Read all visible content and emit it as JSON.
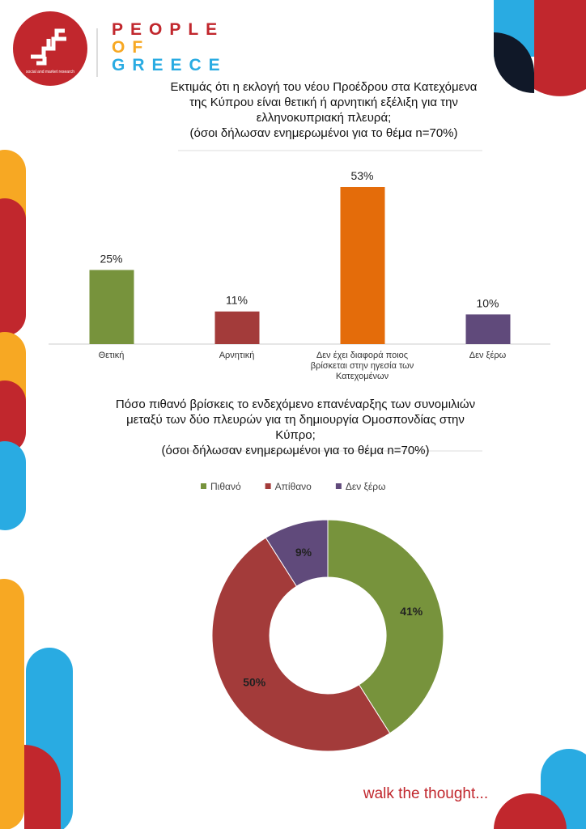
{
  "header": {
    "brand_lines": [
      "PEOPLE",
      "OF",
      "GREECE"
    ],
    "tagline": "social and market research"
  },
  "footer": "walk the thought...",
  "chart_data": [
    {
      "type": "bar",
      "title": "Εκτιμάς ότι η εκλογή του νέου Προέδρου στα Κατεχόμενα της Κύπρου είναι θετική ή αρνητική εξέλιξη για την ελληνοκυπριακή πλευρά;",
      "subtitle": "(όσοι δήλωσαν ενημερωμένοι για το θέμα n=70%)",
      "categories": [
        "Θετική",
        "Αρνητική",
        "Δεν έχει διαφορά ποιος βρίσκεται στην ηγεσία των Κατεχομένων",
        "Δεν ξέρω"
      ],
      "values": [
        25,
        11,
        53,
        10
      ],
      "value_labels": [
        "25%",
        "11%",
        "53%",
        "10%"
      ],
      "colors": [
        "#77933c",
        "#a33b3a",
        "#e46c0a",
        "#604a7b"
      ]
    },
    {
      "type": "pie",
      "title": "Πόσο πιθανό βρίσκεις το ενδεχόμενο επανέναρξης των συνομιλιών μεταξύ των δύο πλευρών για τη δημιουργία Ομοσπονδίας στην Κύπρο;",
      "subtitle": "(όσοι δήλωσαν ενημερωμένοι για το θέμα n=70%)",
      "categories": [
        "Πιθανό",
        "Απίθανο",
        "Δεν ξέρω"
      ],
      "values": [
        41,
        50,
        9
      ],
      "value_labels": [
        "41%",
        "50%",
        "9%"
      ],
      "colors": [
        "#77933c",
        "#a33b3a",
        "#604a7b"
      ],
      "donut": true,
      "legend": "top"
    }
  ]
}
